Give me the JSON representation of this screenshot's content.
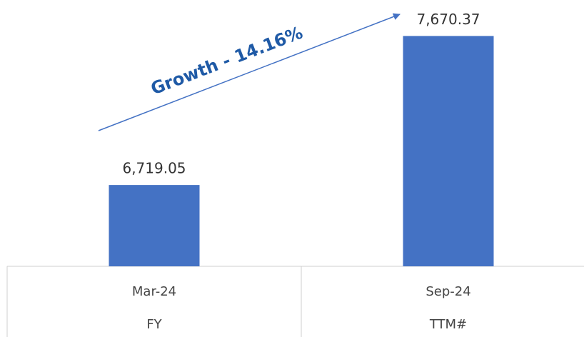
{
  "chart_data": {
    "type": "bar",
    "categories": [
      "Mar-24",
      "Sep-24"
    ],
    "sub_categories": [
      "FY",
      "TTM#"
    ],
    "values": [
      6719.05,
      7670.37
    ],
    "value_labels": [
      "6,719.05",
      "7,670.37"
    ],
    "color": "#4472c4",
    "ylim": [
      6200,
      7900
    ],
    "annotation": "Growth - 14.16%"
  }
}
